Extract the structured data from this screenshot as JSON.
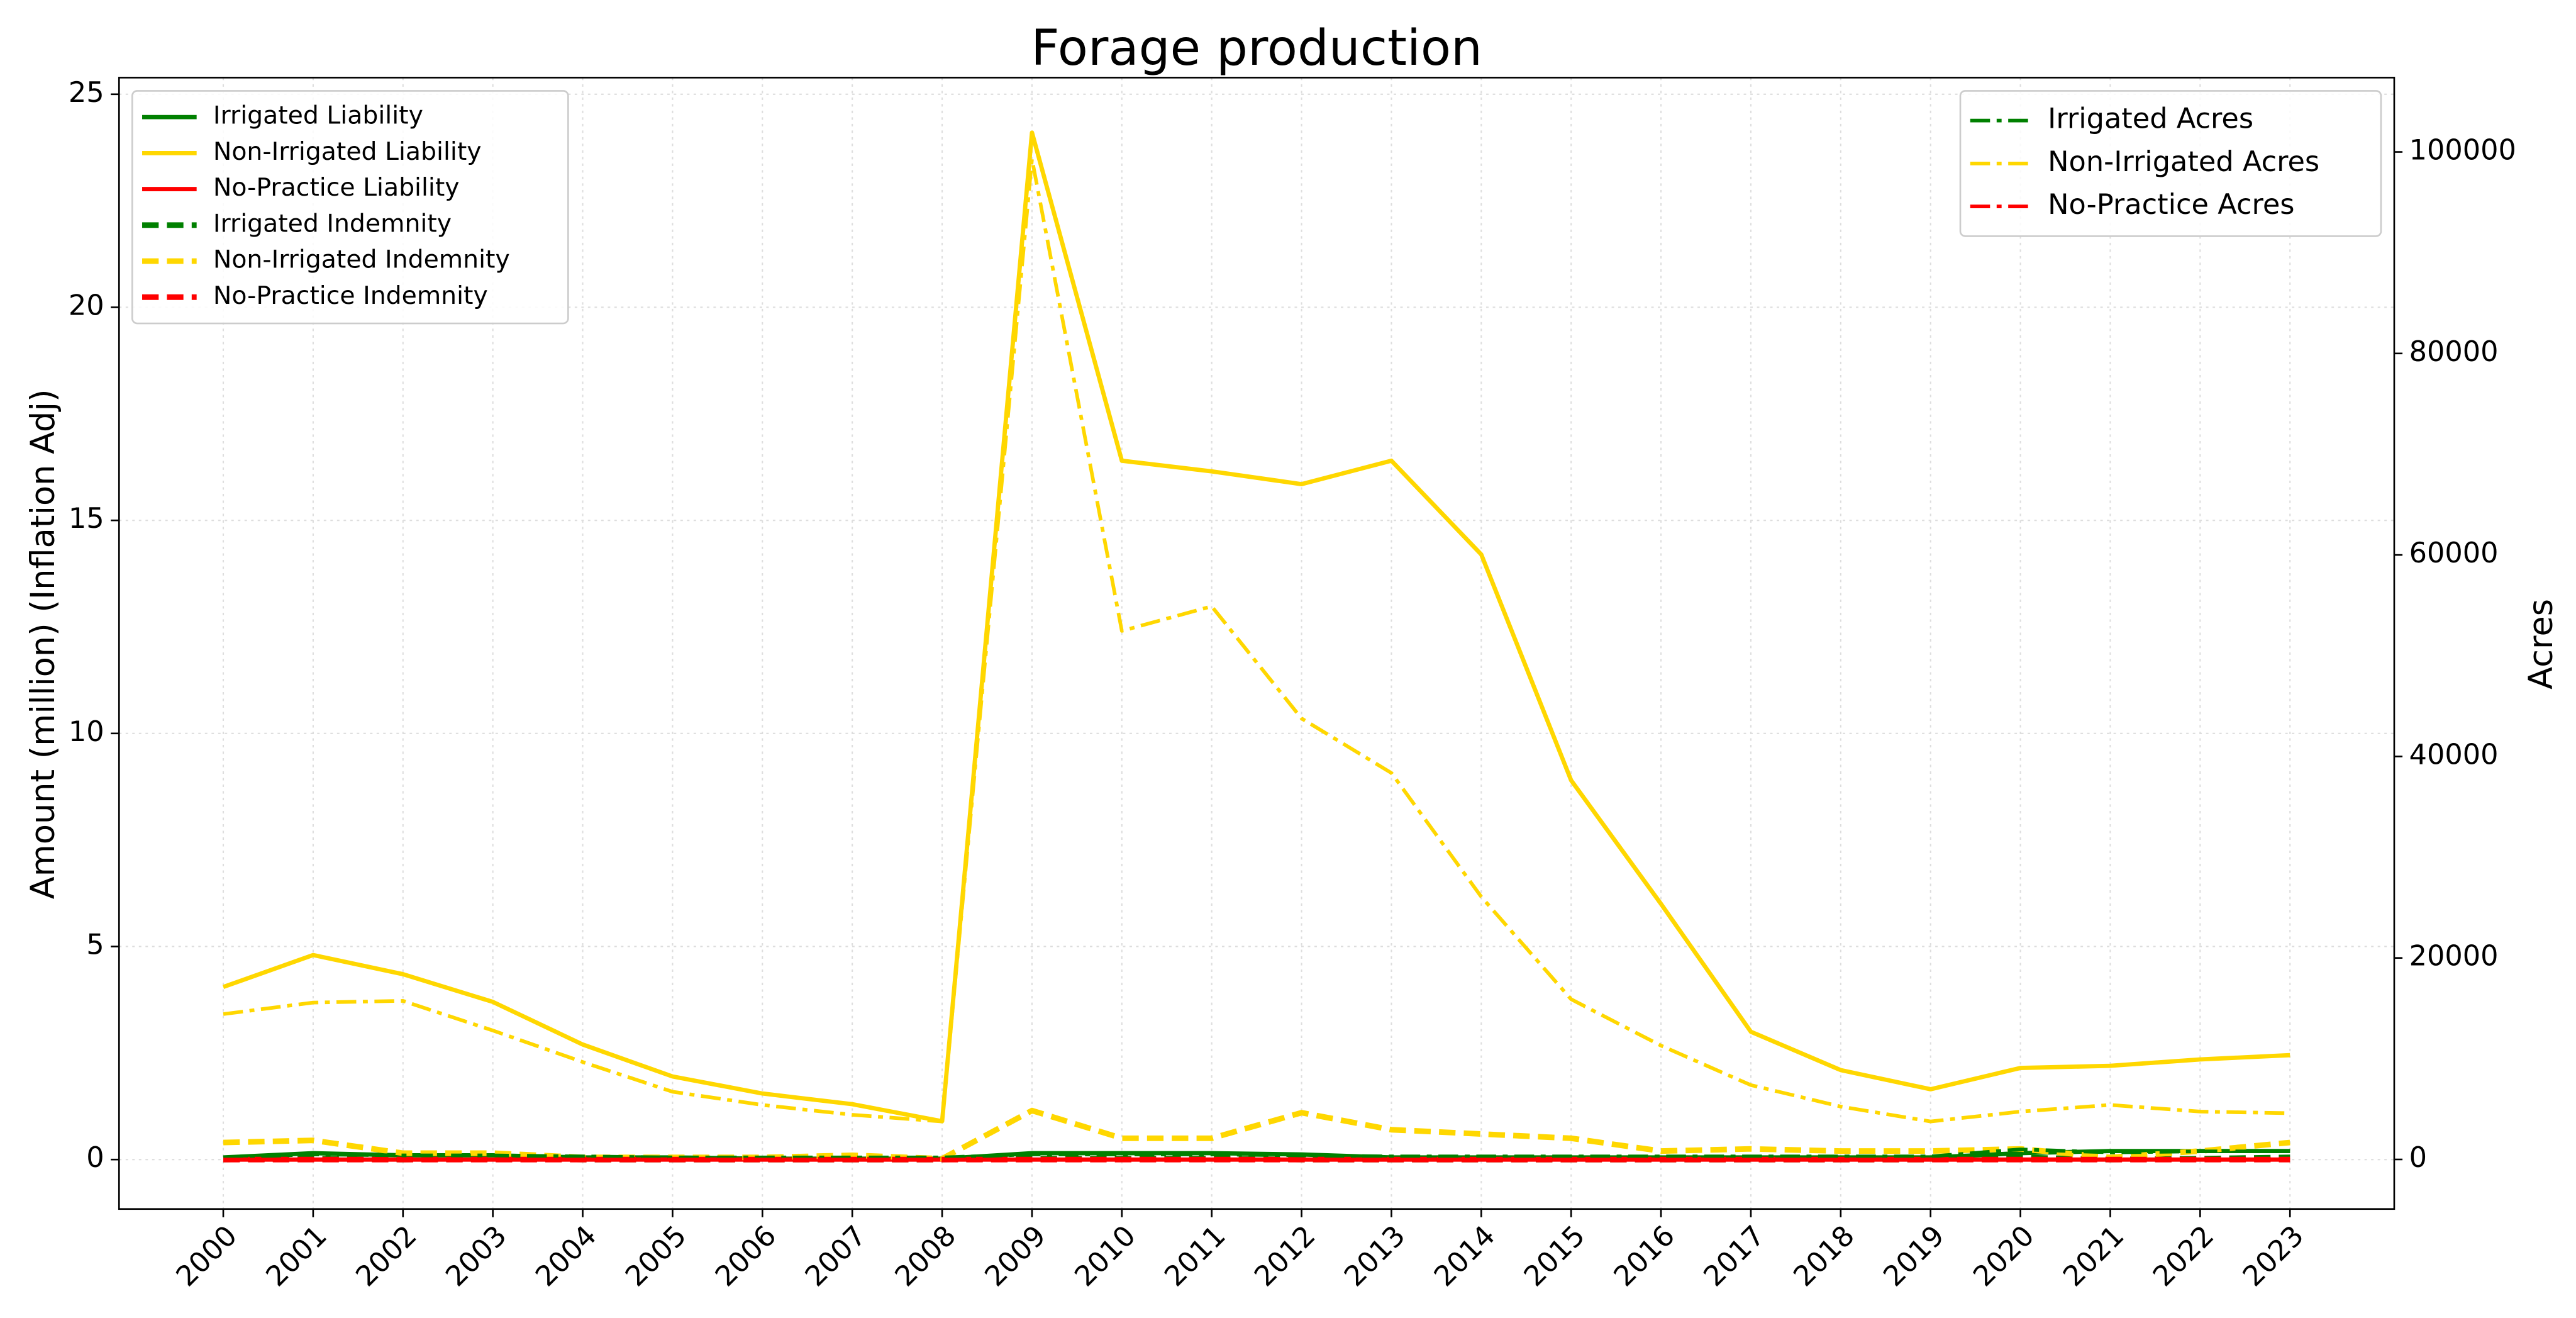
{
  "chart_data": {
    "type": "line",
    "title": "Forage production",
    "ylabel": "Amount (million) (Inflation Adj)",
    "y2label": "Acres",
    "categories": [
      "2000",
      "2001",
      "2002",
      "2003",
      "2004",
      "2005",
      "2006",
      "2007",
      "2008",
      "2009",
      "2010",
      "2011",
      "2012",
      "2013",
      "2014",
      "2015",
      "2016",
      "2017",
      "2018",
      "2019",
      "2020",
      "2021",
      "2022",
      "2023"
    ],
    "ylim": [
      -1.16,
      25.39
    ],
    "yticks": [
      0,
      5,
      10,
      15,
      20,
      25
    ],
    "y2lim": [
      -4918,
      107377
    ],
    "y2ticks": [
      0,
      20000,
      40000,
      60000,
      80000,
      100000
    ],
    "grid": true,
    "legend": "upper left",
    "legend2": "upper right",
    "series": [
      {
        "name": "Irrigated Liability",
        "color": "#008000",
        "linestyle": "solid",
        "values": [
          0.05,
          0.15,
          0.1,
          0.1,
          0.05,
          0.05,
          0.02,
          0.02,
          0.02,
          0.15,
          0.15,
          0.15,
          0.12,
          0.05,
          0.05,
          0.05,
          0.05,
          0.05,
          0.05,
          0.05,
          0.15,
          0.2,
          0.2,
          0.2
        ]
      },
      {
        "name": "Non-Irrigated Liability",
        "color": "#ffd700",
        "linestyle": "solid",
        "values": [
          4.05,
          4.8,
          4.35,
          3.7,
          2.7,
          1.95,
          1.55,
          1.3,
          0.9,
          24.1,
          16.4,
          16.15,
          15.85,
          16.4,
          14.2,
          8.9,
          6.0,
          3.0,
          2.1,
          1.65,
          2.15,
          2.2,
          2.35,
          2.45
        ]
      },
      {
        "name": "No-Practice Liability",
        "color": "#ff0000",
        "linestyle": "solid",
        "values": [
          0,
          0,
          0,
          0,
          0,
          0,
          0,
          0,
          0,
          0,
          0,
          0,
          0,
          0,
          0,
          0,
          0,
          0,
          0,
          0,
          0,
          0,
          0,
          0
        ]
      },
      {
        "name": "Irrigated Indemnity",
        "color": "#008000",
        "linestyle": "dashed",
        "values": [
          0,
          0.02,
          0,
          0.02,
          0,
          0,
          0,
          0,
          0,
          0.02,
          0.02,
          0.02,
          0,
          0,
          0,
          0,
          0,
          0,
          0,
          0,
          0.05,
          0,
          0.02,
          0.05
        ]
      },
      {
        "name": "Non-Irrigated Indemnity",
        "color": "#ffd700",
        "linestyle": "dashed",
        "values": [
          0.4,
          0.45,
          0.15,
          0.15,
          0.05,
          0.05,
          0.05,
          0.1,
          0.02,
          1.15,
          0.5,
          0.5,
          1.1,
          0.7,
          0.6,
          0.5,
          0.2,
          0.25,
          0.2,
          0.2,
          0.25,
          0.05,
          0.2,
          0.4
        ]
      },
      {
        "name": "No-Practice Indemnity",
        "color": "#ff0000",
        "linestyle": "dashed",
        "values": [
          0,
          0,
          0,
          0,
          0,
          0,
          0,
          0,
          0,
          0,
          0,
          0,
          0,
          0,
          0,
          0,
          0,
          0,
          0,
          0,
          0,
          0,
          0,
          0
        ]
      },
      {
        "name": "Irrigated Acres",
        "color": "#008000",
        "linestyle": "dashdot",
        "axis": "y2",
        "values": [
          200,
          500,
          400,
          400,
          300,
          200,
          200,
          200,
          200,
          500,
          500,
          500,
          400,
          300,
          300,
          300,
          300,
          300,
          300,
          300,
          1000,
          700,
          800,
          800
        ]
      },
      {
        "name": "Non-Irrigated Acres",
        "color": "#ffd700",
        "linestyle": "dashdot",
        "axis": "y2",
        "values": [
          14426,
          15570,
          15740,
          12800,
          9670,
          6720,
          5410,
          4430,
          3770,
          99300,
          52460,
          54900,
          43770,
          38360,
          26070,
          15900,
          11300,
          7380,
          5250,
          3770,
          4750,
          5410,
          4750,
          4590
        ]
      },
      {
        "name": "No-Practice Acres",
        "color": "#ff0000",
        "linestyle": "dashdot",
        "axis": "y2",
        "values": [
          0,
          0,
          0,
          0,
          0,
          0,
          0,
          0,
          0,
          0,
          0,
          0,
          0,
          0,
          0,
          0,
          0,
          0,
          0,
          0,
          0,
          0,
          0,
          0
        ]
      }
    ]
  }
}
